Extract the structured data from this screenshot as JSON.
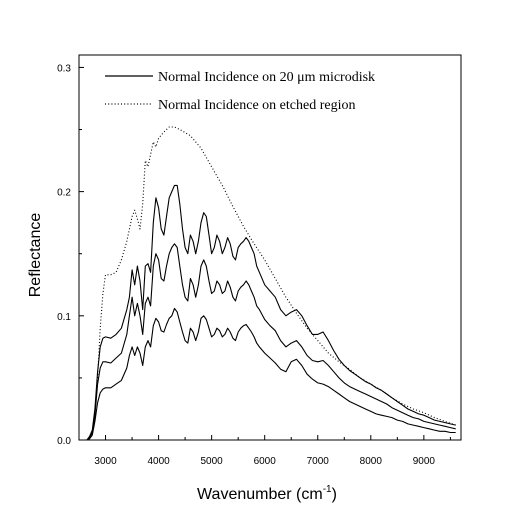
{
  "chart_data": {
    "type": "line",
    "title": "",
    "xlabel": "Wavenumber (cm",
    "xlabel_sup": "-1",
    "xlabel_close": ")",
    "ylabel": "Reflectance",
    "xlim": [
      2500,
      9700
    ],
    "ylim": [
      0,
      0.31
    ],
    "x_ticks": [
      3000,
      4000,
      5000,
      6000,
      7000,
      8000,
      9000
    ],
    "x_tick_labels": [
      "3000",
      "4000",
      "5000",
      "6000",
      "7000",
      "8000",
      "9000"
    ],
    "x_minor_step": 500,
    "y_ticks": [
      0,
      0.1,
      0.2,
      0.3
    ],
    "y_tick_labels": [
      "0.0",
      "0.1",
      "0.2",
      "0.3"
    ],
    "y_minor_step": 0.05,
    "grid": false,
    "legend_position": "top-right",
    "legend": [
      {
        "label": "Normal Incidence on 20 μm microdisk",
        "style": "solid"
      },
      {
        "label": "Normal Incidence on etched region",
        "style": "dotted"
      }
    ],
    "series": [
      {
        "style": "dotted",
        "x": [
          2650,
          2700,
          2750,
          2800,
          2850,
          2900,
          2950,
          3000,
          3100,
          3200,
          3300,
          3400,
          3500,
          3550,
          3600,
          3650,
          3700,
          3750,
          3800,
          3850,
          3900,
          3950,
          4000,
          4100,
          4200,
          4300,
          4400,
          4600,
          4800,
          5000,
          5200,
          5400,
          5600,
          5800,
          6000,
          6200,
          6400,
          6600,
          6800,
          7000,
          7200,
          7400,
          7600,
          7800,
          8000,
          8200,
          8400,
          8600,
          8800,
          9000,
          9200,
          9400,
          9600
        ],
        "y": [
          0.0,
          0.002,
          0.006,
          0.02,
          0.05,
          0.09,
          0.118,
          0.133,
          0.133,
          0.135,
          0.145,
          0.16,
          0.18,
          0.185,
          0.178,
          0.17,
          0.19,
          0.225,
          0.22,
          0.23,
          0.24,
          0.236,
          0.243,
          0.248,
          0.252,
          0.252,
          0.25,
          0.245,
          0.235,
          0.22,
          0.205,
          0.188,
          0.172,
          0.158,
          0.145,
          0.13,
          0.115,
          0.102,
          0.09,
          0.08,
          0.07,
          0.063,
          0.057,
          0.05,
          0.045,
          0.04,
          0.034,
          0.029,
          0.025,
          0.022,
          0.018,
          0.015,
          0.012
        ]
      },
      {
        "style": "solid",
        "x": [
          2650,
          2700,
          2750,
          2800,
          2850,
          2900,
          2950,
          3000,
          3100,
          3200,
          3300,
          3400,
          3450,
          3500,
          3550,
          3600,
          3650,
          3700,
          3750,
          3800,
          3850,
          3900,
          3950,
          4000,
          4050,
          4100,
          4150,
          4200,
          4250,
          4300,
          4350,
          4400,
          4450,
          4500,
          4550,
          4600,
          4650,
          4700,
          4750,
          4800,
          4850,
          4900,
          4950,
          5000,
          5050,
          5100,
          5150,
          5200,
          5250,
          5300,
          5350,
          5400,
          5450,
          5500,
          5550,
          5600,
          5650,
          5700,
          5750,
          5800,
          5850,
          5900,
          6000,
          6100,
          6200,
          6300,
          6400,
          6500,
          6600,
          6700,
          6800,
          6900,
          7000,
          7100,
          7200,
          7300,
          7400,
          7500,
          7600,
          7700,
          7800,
          7900,
          8000,
          8100,
          8200,
          8300,
          8400,
          8500,
          8600,
          8700,
          8800,
          8900,
          9000,
          9100,
          9200,
          9300,
          9400,
          9500,
          9600
        ],
        "y": [
          0.0,
          0.003,
          0.008,
          0.025,
          0.055,
          0.075,
          0.082,
          0.083,
          0.082,
          0.085,
          0.09,
          0.105,
          0.115,
          0.137,
          0.125,
          0.14,
          0.128,
          0.105,
          0.14,
          0.142,
          0.135,
          0.175,
          0.195,
          0.187,
          0.17,
          0.165,
          0.18,
          0.195,
          0.2,
          0.205,
          0.205,
          0.19,
          0.17,
          0.155,
          0.15,
          0.165,
          0.16,
          0.15,
          0.16,
          0.175,
          0.183,
          0.18,
          0.165,
          0.15,
          0.155,
          0.165,
          0.16,
          0.15,
          0.155,
          0.163,
          0.158,
          0.148,
          0.145,
          0.155,
          0.158,
          0.16,
          0.163,
          0.16,
          0.155,
          0.15,
          0.14,
          0.135,
          0.125,
          0.12,
          0.115,
          0.105,
          0.1,
          0.103,
          0.105,
          0.1,
          0.092,
          0.085,
          0.085,
          0.087,
          0.08,
          0.072,
          0.065,
          0.06,
          0.056,
          0.053,
          0.05,
          0.047,
          0.045,
          0.042,
          0.04,
          0.037,
          0.034,
          0.031,
          0.028,
          0.025,
          0.023,
          0.021,
          0.02,
          0.018,
          0.016,
          0.015,
          0.014,
          0.013,
          0.012
        ]
      },
      {
        "style": "solid",
        "x": [
          2650,
          2700,
          2750,
          2800,
          2850,
          2900,
          2950,
          3000,
          3100,
          3200,
          3300,
          3400,
          3450,
          3500,
          3550,
          3600,
          3650,
          3700,
          3750,
          3800,
          3850,
          3900,
          3950,
          4000,
          4050,
          4100,
          4150,
          4200,
          4250,
          4300,
          4350,
          4400,
          4450,
          4500,
          4550,
          4600,
          4650,
          4700,
          4750,
          4800,
          4850,
          4900,
          4950,
          5000,
          5050,
          5100,
          5150,
          5200,
          5250,
          5300,
          5350,
          5400,
          5450,
          5500,
          5550,
          5600,
          5650,
          5700,
          5750,
          5800,
          5850,
          5900,
          6000,
          6100,
          6200,
          6300,
          6400,
          6500,
          6600,
          6700,
          6800,
          6900,
          7000,
          7100,
          7200,
          7300,
          7400,
          7500,
          7600,
          7700,
          7800,
          7900,
          8000,
          8100,
          8200,
          8300,
          8400,
          8500,
          8600,
          8700,
          8800,
          8900,
          9000,
          9100,
          9200,
          9300,
          9400,
          9500,
          9600
        ],
        "y": [
          0.0,
          0.002,
          0.006,
          0.02,
          0.045,
          0.058,
          0.063,
          0.063,
          0.062,
          0.066,
          0.07,
          0.085,
          0.1,
          0.115,
          0.1,
          0.11,
          0.1,
          0.085,
          0.11,
          0.115,
          0.108,
          0.14,
          0.15,
          0.145,
          0.13,
          0.128,
          0.14,
          0.15,
          0.155,
          0.158,
          0.155,
          0.14,
          0.125,
          0.115,
          0.112,
          0.13,
          0.125,
          0.115,
          0.125,
          0.14,
          0.145,
          0.14,
          0.128,
          0.118,
          0.12,
          0.128,
          0.125,
          0.118,
          0.12,
          0.128,
          0.123,
          0.115,
          0.112,
          0.12,
          0.123,
          0.125,
          0.128,
          0.125,
          0.12,
          0.115,
          0.108,
          0.105,
          0.097,
          0.092,
          0.088,
          0.08,
          0.075,
          0.078,
          0.08,
          0.075,
          0.068,
          0.064,
          0.063,
          0.064,
          0.06,
          0.055,
          0.05,
          0.046,
          0.043,
          0.041,
          0.039,
          0.037,
          0.035,
          0.033,
          0.031,
          0.029,
          0.026,
          0.024,
          0.022,
          0.02,
          0.018,
          0.017,
          0.015,
          0.014,
          0.013,
          0.012,
          0.011,
          0.01,
          0.009
        ]
      },
      {
        "style": "solid",
        "x": [
          2650,
          2700,
          2750,
          2800,
          2850,
          2900,
          2950,
          3000,
          3100,
          3200,
          3300,
          3400,
          3450,
          3500,
          3550,
          3600,
          3650,
          3700,
          3750,
          3800,
          3850,
          3900,
          3950,
          4000,
          4050,
          4100,
          4150,
          4200,
          4250,
          4300,
          4350,
          4400,
          4450,
          4500,
          4550,
          4600,
          4650,
          4700,
          4750,
          4800,
          4850,
          4900,
          4950,
          5000,
          5050,
          5100,
          5150,
          5200,
          5250,
          5300,
          5350,
          5400,
          5450,
          5500,
          5550,
          5600,
          5650,
          5700,
          5750,
          5800,
          5850,
          5900,
          6000,
          6100,
          6200,
          6300,
          6400,
          6500,
          6600,
          6700,
          6800,
          6900,
          7000,
          7100,
          7200,
          7300,
          7400,
          7500,
          7600,
          7700,
          7800,
          7900,
          8000,
          8100,
          8200,
          8300,
          8400,
          8500,
          8600,
          8700,
          8800,
          8900,
          9000,
          9100,
          9200,
          9300,
          9400,
          9500,
          9600
        ],
        "y": [
          0.0,
          0.001,
          0.004,
          0.015,
          0.03,
          0.038,
          0.041,
          0.042,
          0.042,
          0.045,
          0.048,
          0.058,
          0.068,
          0.075,
          0.068,
          0.075,
          0.07,
          0.06,
          0.075,
          0.08,
          0.075,
          0.092,
          0.098,
          0.095,
          0.088,
          0.087,
          0.093,
          0.098,
          0.1,
          0.106,
          0.103,
          0.095,
          0.087,
          0.08,
          0.078,
          0.09,
          0.087,
          0.08,
          0.087,
          0.098,
          0.1,
          0.097,
          0.09,
          0.083,
          0.085,
          0.09,
          0.088,
          0.083,
          0.085,
          0.09,
          0.087,
          0.082,
          0.08,
          0.087,
          0.09,
          0.092,
          0.093,
          0.09,
          0.087,
          0.083,
          0.078,
          0.075,
          0.07,
          0.066,
          0.062,
          0.057,
          0.055,
          0.063,
          0.065,
          0.06,
          0.053,
          0.049,
          0.046,
          0.045,
          0.043,
          0.04,
          0.037,
          0.034,
          0.031,
          0.029,
          0.027,
          0.025,
          0.023,
          0.021,
          0.02,
          0.019,
          0.018,
          0.016,
          0.015,
          0.013,
          0.012,
          0.011,
          0.01,
          0.009,
          0.008,
          0.007,
          0.007,
          0.006,
          0.006
        ]
      }
    ]
  }
}
